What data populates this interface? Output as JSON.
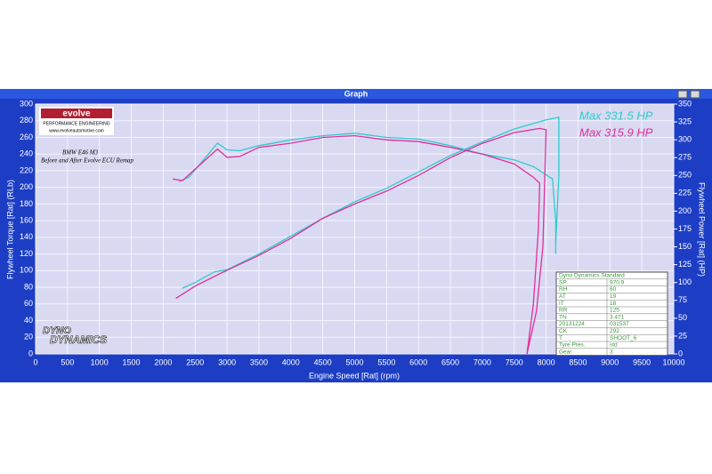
{
  "chart_data": {
    "type": "line",
    "title": "Graph",
    "xlabel": "Engine Speed [Rat] (rpm)",
    "ylabel": "Flywheel Torque [Rat] (RLb)",
    "y2label": "Flywheel Power [Rat] (HP)",
    "xlim": [
      0,
      10000
    ],
    "xticks": [
      0,
      500,
      1000,
      1500,
      2000,
      2500,
      3000,
      3500,
      4000,
      4500,
      5000,
      5500,
      6000,
      6500,
      7000,
      7500,
      8000,
      8500,
      9000,
      9500,
      10000
    ],
    "ylim": [
      0,
      300
    ],
    "yticks": [
      0,
      20,
      40,
      60,
      80,
      100,
      120,
      140,
      160,
      180,
      200,
      220,
      240,
      260,
      280,
      300
    ],
    "y2lim": [
      0,
      350
    ],
    "y2ticks": [
      0,
      25,
      50,
      75,
      100,
      125,
      150,
      175,
      200,
      225,
      250,
      275,
      300,
      325,
      350
    ],
    "grid": true,
    "annotations": [
      "BMW E46 M3",
      "Before and After Evolve ECU Remap"
    ],
    "max_labels": [
      {
        "text": "Max 331.5 HP",
        "color": "#2ecccc"
      },
      {
        "text": "Max 315.9 HP",
        "color": "#e0309a"
      }
    ],
    "logos": {
      "evolve": "evolve",
      "evolve_tagline": "PERFORMANCE ENGINEERING",
      "evolve_url": "www.evolveautomotive.com",
      "dyno_top": "DYNO",
      "dyno_bottom": "DYNAMICS"
    },
    "series": [
      {
        "color": "#2ecccc",
        "axis": "y",
        "x": [
          2250,
          2400,
          2600,
          2850,
          3000,
          3200,
          3500,
          4000,
          4500,
          5000,
          5500,
          6000,
          6500,
          7000,
          7500,
          7800,
          8000,
          8100,
          8150,
          8150
        ],
        "values": [
          207,
          212,
          230,
          253,
          245,
          244,
          250,
          257,
          262,
          265,
          260,
          258,
          250,
          240,
          233,
          225,
          215,
          210,
          160,
          120
        ]
      },
      {
        "color": "#e0309a",
        "axis": "y",
        "x": [
          2150,
          2300,
          2500,
          2850,
          3000,
          3200,
          3500,
          4000,
          4500,
          5000,
          5500,
          6000,
          6500,
          7000,
          7500,
          7800,
          7900,
          7880,
          7800,
          7700
        ],
        "values": [
          210,
          208,
          222,
          246,
          236,
          237,
          248,
          253,
          260,
          262,
          257,
          255,
          248,
          240,
          228,
          212,
          205,
          150,
          60,
          0
        ]
      },
      {
        "color": "#2ecccc",
        "axis": "y2",
        "x": [
          2300,
          2500,
          2800,
          3000,
          3500,
          4000,
          4500,
          5000,
          5500,
          6000,
          6500,
          7000,
          7500,
          8000,
          8200,
          8200,
          8150
        ],
        "values": [
          92,
          100,
          115,
          118,
          140,
          165,
          190,
          213,
          232,
          255,
          278,
          297,
          315,
          328,
          331.5,
          250,
          155
        ]
      },
      {
        "color": "#e0309a",
        "axis": "y2",
        "x": [
          2200,
          2500,
          2900,
          3500,
          4000,
          4500,
          5000,
          5500,
          6000,
          6500,
          7000,
          7500,
          7900,
          8000,
          7950,
          7850,
          7700
        ],
        "values": [
          78,
          95,
          113,
          138,
          162,
          190,
          210,
          228,
          250,
          275,
          295,
          310,
          315.9,
          314,
          150,
          60,
          0
        ]
      }
    ],
    "info_table": {
      "title": "Dyno Dynamics Standard",
      "rows": [
        [
          "SP",
          "970.9"
        ],
        [
          "RH",
          "60"
        ],
        [
          "AT",
          "19"
        ],
        [
          "IT",
          "18"
        ],
        [
          "RR",
          "125"
        ],
        [
          "TN",
          "3.471"
        ],
        [
          "20131224",
          "031537"
        ],
        [
          "CK",
          "292"
        ],
        [
          "T",
          "SHOOT_6"
        ],
        [
          "Tyre Pres.",
          "std"
        ],
        [
          "Gear",
          "3"
        ]
      ]
    }
  }
}
